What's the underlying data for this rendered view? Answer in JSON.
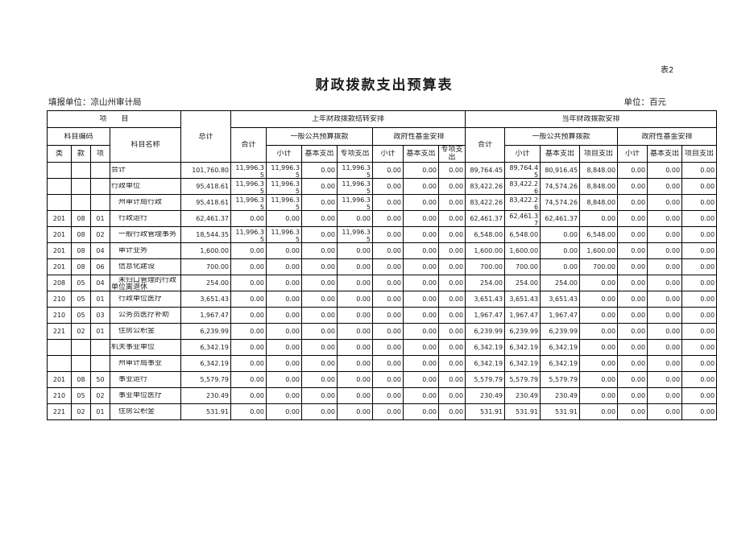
{
  "theme": {
    "border_color": "#000000",
    "text_color": "#1c1c1c",
    "background": "#ffffff"
  },
  "page": {
    "sheet_label": "表2",
    "title": "财政拨款支出预算表",
    "reporting_unit": "填报单位：凉山州审计局",
    "unit_note": "单位：百元"
  },
  "table": {
    "header": {
      "project": "项　　目",
      "subject_code": "科目编码",
      "col_class": "类",
      "col_section": "款",
      "col_item": "项",
      "subject_name": "科目名称",
      "grand_total": "总计",
      "prev_year_section": "上年财政拨款结转安排",
      "curr_year_section": "当年财政拨款安排",
      "total": "合计",
      "general_budget": "一般公共预算拨款",
      "gov_fund": "政府性基金安排",
      "subtotal": "小计",
      "basic_exp": "基本支出",
      "special_exp": "专项支出",
      "project_exp": "项目支出"
    },
    "rows": [
      {
        "code": [
          "",
          "",
          ""
        ],
        "name": "合计",
        "values": [
          "101,760.80",
          "11,996.35",
          "11,996.35",
          "0.00",
          "11,996.35",
          "0.00",
          "0.00",
          "0.00",
          "89,764.45",
          "89,764.45",
          "80,916.45",
          "8,848.00",
          "0.00",
          "0.00",
          "0.00"
        ]
      },
      {
        "code": [
          "",
          "",
          ""
        ],
        "name": "行政单位",
        "values": [
          "95,418.61",
          "11,996.35",
          "11,996.35",
          "0.00",
          "11,996.35",
          "0.00",
          "0.00",
          "0.00",
          "83,422.26",
          "83,422.26",
          "74,574.26",
          "8,848.00",
          "0.00",
          "0.00",
          "0.00"
        ]
      },
      {
        "code": [
          "",
          "",
          ""
        ],
        "name": "　州审计局行政",
        "values": [
          "95,418.61",
          "11,996.35",
          "11,996.35",
          "0.00",
          "11,996.35",
          "0.00",
          "0.00",
          "0.00",
          "83,422.26",
          "83,422.26",
          "74,574.26",
          "8,848.00",
          "0.00",
          "0.00",
          "0.00"
        ]
      },
      {
        "code": [
          "201",
          "08",
          "01"
        ],
        "name": "　行政运行",
        "values": [
          "62,461.37",
          "0.00",
          "0.00",
          "0.00",
          "0.00",
          "0.00",
          "0.00",
          "0.00",
          "62,461.37",
          "62,461.37",
          "62,461.37",
          "0.00",
          "0.00",
          "0.00",
          "0.00"
        ]
      },
      {
        "code": [
          "201",
          "08",
          "02"
        ],
        "name": "　一般行政管理事务",
        "values": [
          "18,544.35",
          "11,996.35",
          "11,996.35",
          "0.00",
          "11,996.35",
          "0.00",
          "0.00",
          "0.00",
          "6,548.00",
          "6,548.00",
          "0.00",
          "6,548.00",
          "0.00",
          "0.00",
          "0.00"
        ]
      },
      {
        "code": [
          "201",
          "08",
          "04"
        ],
        "name": "　审计业务",
        "values": [
          "1,600.00",
          "0.00",
          "0.00",
          "0.00",
          "0.00",
          "0.00",
          "0.00",
          "0.00",
          "1,600.00",
          "1,600.00",
          "0.00",
          "1,600.00",
          "0.00",
          "0.00",
          "0.00"
        ]
      },
      {
        "code": [
          "201",
          "08",
          "06"
        ],
        "name": "　信息化建设",
        "values": [
          "700.00",
          "0.00",
          "0.00",
          "0.00",
          "0.00",
          "0.00",
          "0.00",
          "0.00",
          "700.00",
          "700.00",
          "0.00",
          "700.00",
          "0.00",
          "0.00",
          "0.00"
        ]
      },
      {
        "code": [
          "208",
          "05",
          "04"
        ],
        "name": "　未归口管理的行政单位离退休",
        "values": [
          "254.00",
          "0.00",
          "0.00",
          "0.00",
          "0.00",
          "0.00",
          "0.00",
          "0.00",
          "254.00",
          "254.00",
          "254.00",
          "0.00",
          "0.00",
          "0.00",
          "0.00"
        ]
      },
      {
        "code": [
          "210",
          "05",
          "01"
        ],
        "name": "　行政单位医疗",
        "values": [
          "3,651.43",
          "0.00",
          "0.00",
          "0.00",
          "0.00",
          "0.00",
          "0.00",
          "0.00",
          "3,651.43",
          "3,651.43",
          "3,651.43",
          "0.00",
          "0.00",
          "0.00",
          "0.00"
        ]
      },
      {
        "code": [
          "210",
          "05",
          "03"
        ],
        "name": "　公务员医疗补助",
        "values": [
          "1,967.47",
          "0.00",
          "0.00",
          "0.00",
          "0.00",
          "0.00",
          "0.00",
          "0.00",
          "1,967.47",
          "1,967.47",
          "1,967.47",
          "0.00",
          "0.00",
          "0.00",
          "0.00"
        ]
      },
      {
        "code": [
          "221",
          "02",
          "01"
        ],
        "name": "　住房公积金",
        "values": [
          "6,239.99",
          "0.00",
          "0.00",
          "0.00",
          "0.00",
          "0.00",
          "0.00",
          "0.00",
          "6,239.99",
          "6,239.99",
          "6,239.99",
          "0.00",
          "0.00",
          "0.00",
          "0.00"
        ]
      },
      {
        "code": [
          "",
          "",
          ""
        ],
        "name": "机关事业单位",
        "values": [
          "6,342.19",
          "0.00",
          "0.00",
          "0.00",
          "0.00",
          "0.00",
          "0.00",
          "0.00",
          "6,342.19",
          "6,342.19",
          "6,342.19",
          "0.00",
          "0.00",
          "0.00",
          "0.00"
        ]
      },
      {
        "code": [
          "",
          "",
          ""
        ],
        "name": "　州审计局事业",
        "values": [
          "6,342.19",
          "0.00",
          "0.00",
          "0.00",
          "0.00",
          "0.00",
          "0.00",
          "0.00",
          "6,342.19",
          "6,342.19",
          "6,342.19",
          "0.00",
          "0.00",
          "0.00",
          "0.00"
        ]
      },
      {
        "code": [
          "201",
          "08",
          "50"
        ],
        "name": "　事业运行",
        "values": [
          "5,579.79",
          "0.00",
          "0.00",
          "0.00",
          "0.00",
          "0.00",
          "0.00",
          "0.00",
          "5,579.79",
          "5,579.79",
          "5,579.79",
          "0.00",
          "0.00",
          "0.00",
          "0.00"
        ]
      },
      {
        "code": [
          "210",
          "05",
          "02"
        ],
        "name": "　事业单位医疗",
        "values": [
          "230.49",
          "0.00",
          "0.00",
          "0.00",
          "0.00",
          "0.00",
          "0.00",
          "0.00",
          "230.49",
          "230.49",
          "230.49",
          "0.00",
          "0.00",
          "0.00",
          "0.00"
        ]
      },
      {
        "code": [
          "221",
          "02",
          "01"
        ],
        "name": "　住房公积金",
        "values": [
          "531.91",
          "0.00",
          "0.00",
          "0.00",
          "0.00",
          "0.00",
          "0.00",
          "0.00",
          "531.91",
          "531.91",
          "531.91",
          "0.00",
          "0.00",
          "0.00",
          "0.00"
        ]
      }
    ]
  }
}
